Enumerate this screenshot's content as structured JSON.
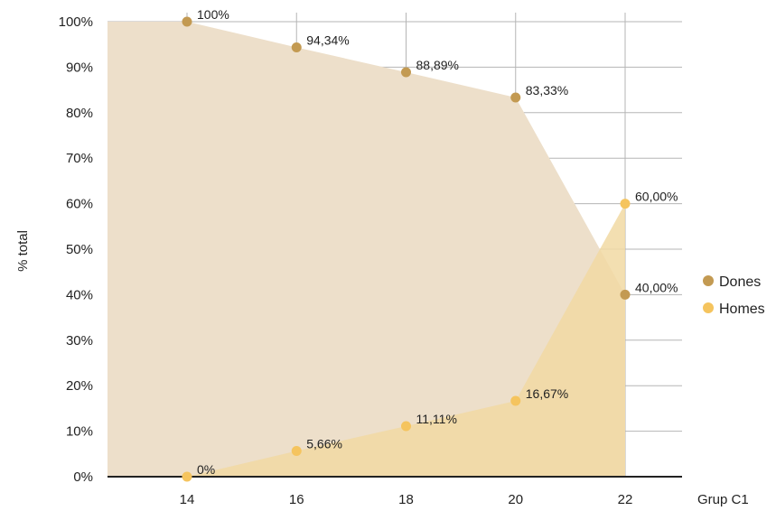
{
  "chart_data": {
    "type": "area",
    "x": [
      14,
      16,
      18,
      20,
      22
    ],
    "xlabel": "Grup C1",
    "ylabel": "% total",
    "ylim": [
      0,
      100
    ],
    "yticks": [
      "0%",
      "10%",
      "20%",
      "30%",
      "40%",
      "50%",
      "60%",
      "70%",
      "80%",
      "90%",
      "100%"
    ],
    "xticks": [
      "14",
      "16",
      "18",
      "20",
      "22"
    ],
    "grid": true,
    "legend_position": "right",
    "series": [
      {
        "name": "Dones",
        "color": "#c39a52",
        "fill": "#eddfca",
        "values": [
          100,
          94.34,
          88.89,
          83.33,
          40.0
        ],
        "labels": [
          "100%",
          "94,34%",
          "88,89%",
          "83,33%",
          "40,00%"
        ]
      },
      {
        "name": "Homes",
        "color": "#f5c45e",
        "fill": "#f1d9a3",
        "values": [
          0,
          5.66,
          11.11,
          16.67,
          60.0
        ],
        "labels": [
          "0%",
          "5,66%",
          "11,11%",
          "16,67%",
          "60,00%"
        ]
      }
    ]
  }
}
